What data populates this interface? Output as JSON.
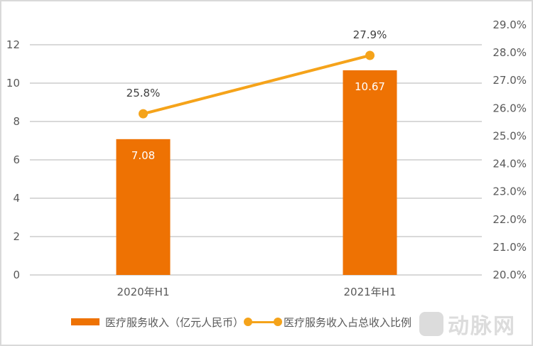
{
  "chart_data": {
    "type": "bar+line",
    "title": "",
    "categories": [
      "2020年H1",
      "2021年H1"
    ],
    "series": [
      {
        "name": "医疗服务收入（亿元人民币）",
        "type": "bar",
        "axis": "left",
        "values": [
          7.08,
          10.67
        ],
        "labels": [
          "7.08",
          "10.67"
        ],
        "color": "#ee7203"
      },
      {
        "name": "医疗服务收入占总收入比例",
        "type": "line",
        "axis": "right",
        "values": [
          25.8,
          27.9
        ],
        "labels": [
          "25.8%",
          "27.9%"
        ],
        "color": "#f5a31a"
      }
    ],
    "left_axis": {
      "ylim": [
        0,
        12
      ],
      "ticks": [
        "0",
        "2",
        "4",
        "6",
        "8",
        "10",
        "12"
      ]
    },
    "right_axis": {
      "ylim": [
        20.0,
        29.0
      ],
      "ticks": [
        "20.0%",
        "21.0%",
        "22.0%",
        "23.0%",
        "24.0%",
        "25.0%",
        "26.0%",
        "27.0%",
        "28.0%",
        "29.0%"
      ]
    },
    "grid": true,
    "legend_position": "bottom"
  },
  "legend": {
    "bar_label": "医疗服务收入（亿元人民币）",
    "line_label": "医疗服务收入占总收入比例"
  },
  "watermark": {
    "text": "动脉网"
  },
  "colors": {
    "bar": "#ee7203",
    "line": "#f5a31a",
    "grid": "#d9d9d9",
    "text": "#595959"
  }
}
